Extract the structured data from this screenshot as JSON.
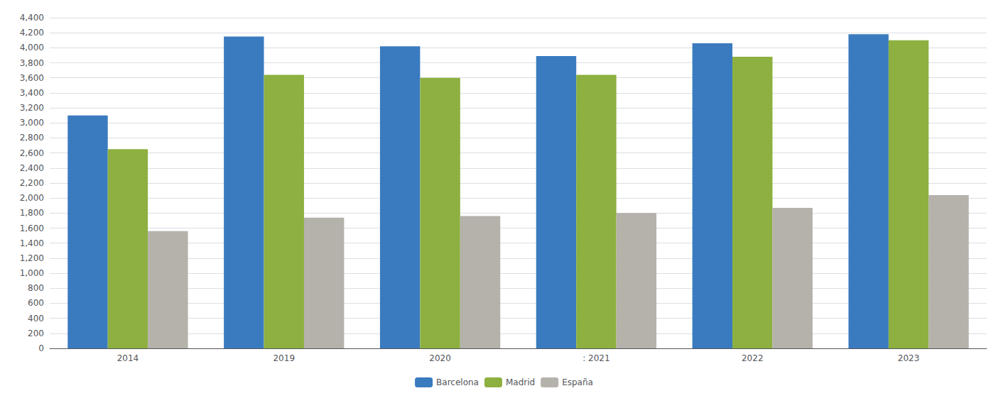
{
  "chart_data": {
    "type": "bar",
    "categories": [
      "2014",
      "2019",
      "2020",
      ": 2021",
      "2022",
      "2023"
    ],
    "series": [
      {
        "name": "Barcelona",
        "color": "#3a7bbf",
        "values": [
          3100,
          4150,
          4020,
          3890,
          4060,
          4180
        ]
      },
      {
        "name": "Madrid",
        "color": "#8db040",
        "values": [
          2650,
          3640,
          3600,
          3640,
          3880,
          4100
        ]
      },
      {
        "name": "España",
        "color": "#b5b1ab",
        "values": [
          1560,
          1740,
          1760,
          1800,
          1870,
          2040
        ]
      }
    ],
    "ylim": [
      0,
      4400
    ],
    "yticks": [
      0,
      200,
      400,
      600,
      800,
      {
        "value": 1000,
        "label": "1,000"
      },
      {
        "value": 1200,
        "label": "1,200"
      },
      {
        "value": 1400,
        "label": "1,400"
      },
      {
        "value": 1600,
        "label": "1,600"
      },
      {
        "value": 1800,
        "label": "1,800"
      },
      {
        "value": 2000,
        "label": "2,000"
      },
      {
        "value": 2200,
        "label": "2,200"
      },
      {
        "value": 2400,
        "label": "2,400"
      },
      {
        "value": 2600,
        "label": "2,600"
      },
      {
        "value": 2800,
        "label": "2,800"
      },
      {
        "value": 3000,
        "label": "3,000"
      },
      {
        "value": 3200,
        "label": "3,200"
      },
      {
        "value": 3400,
        "label": "3,400"
      },
      {
        "value": 3600,
        "label": "3,600"
      },
      {
        "value": 3800,
        "label": "3,800"
      },
      {
        "value": 4000,
        "label": "4,000"
      },
      {
        "value": 4200,
        "label": "4,200"
      },
      {
        "value": 4400,
        "label": "4,400"
      }
    ],
    "grid": true,
    "legend": "bottom"
  }
}
